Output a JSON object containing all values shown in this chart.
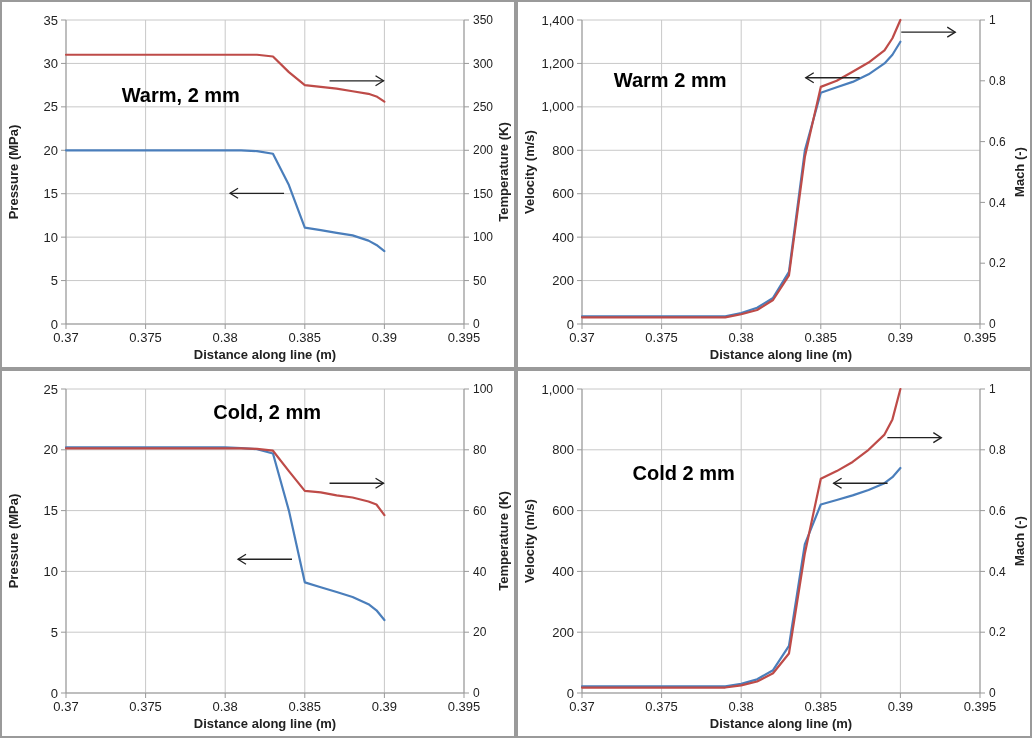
{
  "chart_data": [
    {
      "type": "line",
      "title": "Warm, 2 mm",
      "xlabel": "Distance along line (m)",
      "ylabel": "Pressure (MPa)",
      "y2label": "Temperature (K)",
      "xlim": [
        0.37,
        0.395
      ],
      "xticks": [
        0.37,
        0.375,
        0.38,
        0.385,
        0.39,
        0.395
      ],
      "ylim": [
        0,
        35
      ],
      "yticks": [
        0,
        5,
        10,
        15,
        20,
        25,
        30,
        35
      ],
      "y2lim": [
        0,
        350
      ],
      "y2ticks": [
        0,
        50,
        100,
        150,
        200,
        250,
        300,
        350
      ],
      "grid": true,
      "series": [
        {
          "color": "#4a7ebb",
          "x": [
            0.37,
            0.375,
            0.38,
            0.381,
            0.382,
            0.383,
            0.384,
            0.385,
            0.386,
            0.387,
            0.388,
            0.389,
            0.3895,
            0.39
          ],
          "values": [
            20,
            20,
            20,
            20,
            19.9,
            19.6,
            16,
            11.1,
            10.8,
            10.5,
            10.2,
            9.6,
            9.1,
            8.4
          ]
        },
        {
          "color": "#be4b48",
          "axis": "y2",
          "x": [
            0.37,
            0.375,
            0.38,
            0.381,
            0.382,
            0.383,
            0.384,
            0.385,
            0.386,
            0.387,
            0.388,
            0.389,
            0.3895,
            0.39
          ],
          "values": [
            310,
            310,
            310,
            310,
            310,
            308,
            290,
            275,
            273,
            271,
            268,
            265,
            262,
            256
          ]
        }
      ]
    },
    {
      "type": "line",
      "title": "Warm 2 mm",
      "xlabel": "Distance along line (m)",
      "ylabel": "Velocity (m/s)",
      "y2label": "Mach (-)",
      "xlim": [
        0.37,
        0.395
      ],
      "xticks": [
        0.37,
        0.375,
        0.38,
        0.385,
        0.39,
        0.395
      ],
      "ylim": [
        0,
        1400
      ],
      "yticks": [
        0,
        200,
        400,
        600,
        800,
        {
          "value": 1000,
          "label": "1,000"
        },
        {
          "value": 1200,
          "label": "1,200"
        },
        {
          "value": 1400,
          "label": "1,400"
        }
      ],
      "y2lim": [
        0,
        1
      ],
      "y2ticks": [
        0,
        0.2,
        0.4,
        0.6,
        0.8,
        1
      ],
      "grid": true,
      "series": [
        {
          "color": "#4a7ebb",
          "x": [
            0.37,
            0.375,
            0.379,
            0.38,
            0.381,
            0.382,
            0.383,
            0.384,
            0.385,
            0.386,
            0.387,
            0.388,
            0.389,
            0.3895,
            0.39
          ],
          "values": [
            35,
            35,
            35,
            50,
            75,
            120,
            240,
            800,
            1065,
            1090,
            1115,
            1150,
            1200,
            1240,
            1300
          ]
        },
        {
          "color": "#be4b48",
          "axis": "y2",
          "x": [
            0.37,
            0.375,
            0.379,
            0.38,
            0.381,
            0.382,
            0.383,
            0.384,
            0.385,
            0.386,
            0.387,
            0.388,
            0.389,
            0.3895,
            0.39
          ],
          "values": [
            0.022,
            0.022,
            0.022,
            0.032,
            0.046,
            0.079,
            0.16,
            0.55,
            0.78,
            0.8,
            0.83,
            0.86,
            0.9,
            0.94,
            1
          ]
        }
      ]
    },
    {
      "type": "line",
      "title": "Cold, 2 mm",
      "xlabel": "Distance along line (m)",
      "ylabel": "Pressure (MPa)",
      "y2label": "Temperature (K)",
      "xlim": [
        0.37,
        0.395
      ],
      "xticks": [
        0.37,
        0.375,
        0.38,
        0.385,
        0.39,
        0.395
      ],
      "ylim": [
        0,
        25
      ],
      "yticks": [
        0,
        5,
        10,
        15,
        20,
        25
      ],
      "y2lim": [
        0,
        100
      ],
      "y2ticks": [
        0,
        20,
        40,
        60,
        80,
        100
      ],
      "grid": true,
      "series": [
        {
          "color": "#4a7ebb",
          "x": [
            0.37,
            0.375,
            0.38,
            0.381,
            0.382,
            0.383,
            0.384,
            0.385,
            0.386,
            0.387,
            0.388,
            0.389,
            0.3895,
            0.39
          ],
          "values": [
            20.2,
            20.2,
            20.2,
            20.15,
            20.05,
            19.7,
            15,
            9.1,
            8.7,
            8.3,
            7.9,
            7.3,
            6.8,
            6
          ]
        },
        {
          "color": "#be4b48",
          "axis": "y2",
          "x": [
            0.37,
            0.375,
            0.38,
            0.381,
            0.382,
            0.383,
            0.384,
            0.385,
            0.386,
            0.387,
            0.388,
            0.389,
            0.3895,
            0.39
          ],
          "values": [
            80.5,
            80.5,
            80.5,
            80.5,
            80.3,
            79.7,
            73,
            66.5,
            66,
            65,
            64.3,
            63,
            62,
            58.5
          ]
        }
      ]
    },
    {
      "type": "line",
      "title": "Cold 2 mm",
      "xlabel": "Distance along line (m)",
      "ylabel": "Velocity (m/s)",
      "y2label": "Mach (-)",
      "xlim": [
        0.37,
        0.395
      ],
      "xticks": [
        0.37,
        0.375,
        0.38,
        0.385,
        0.39,
        0.395
      ],
      "ylim": [
        0,
        1000
      ],
      "yticks": [
        0,
        200,
        400,
        600,
        800,
        {
          "value": 1000,
          "label": "1,000"
        }
      ],
      "y2lim": [
        0,
        1
      ],
      "y2ticks": [
        0,
        0.2,
        0.4,
        0.6,
        0.8,
        1
      ],
      "grid": true,
      "series": [
        {
          "color": "#4a7ebb",
          "x": [
            0.37,
            0.375,
            0.379,
            0.38,
            0.381,
            0.382,
            0.383,
            0.384,
            0.385,
            0.386,
            0.387,
            0.388,
            0.389,
            0.3895,
            0.39
          ],
          "values": [
            22,
            22,
            22,
            30,
            45,
            75,
            155,
            490,
            620,
            635,
            650,
            668,
            690,
            710,
            740
          ]
        },
        {
          "color": "#be4b48",
          "axis": "y2",
          "x": [
            0.37,
            0.375,
            0.379,
            0.38,
            0.381,
            0.382,
            0.383,
            0.384,
            0.385,
            0.386,
            0.387,
            0.388,
            0.389,
            0.3895,
            0.39
          ],
          "values": [
            0.018,
            0.018,
            0.018,
            0.025,
            0.038,
            0.065,
            0.13,
            0.46,
            0.705,
            0.73,
            0.76,
            0.8,
            0.85,
            0.9,
            1
          ]
        }
      ]
    }
  ]
}
